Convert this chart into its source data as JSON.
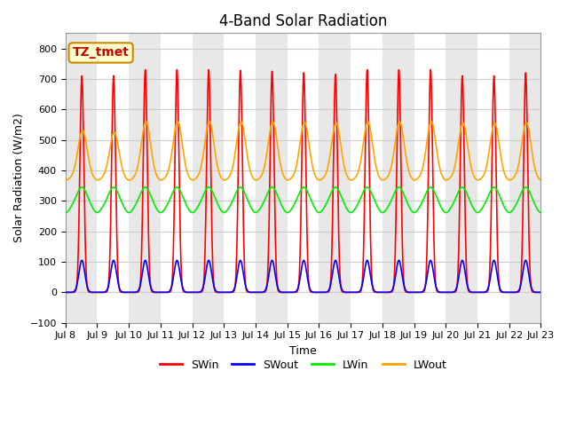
{
  "title": "4-Band Solar Radiation",
  "xlabel": "Time",
  "ylabel": "Solar Radiation (W/m2)",
  "ylim": [
    -100,
    850
  ],
  "annotation_text": "TZ_tmet",
  "annotation_color": "#CC0000",
  "annotation_bg": "#FFFFCC",
  "annotation_border": "#CC8800",
  "grid_color": "#CCCCCC",
  "bg_color": "#FFFFFF",
  "plot_bg": "#FFFFFF",
  "alt_band_color": "#E8E8E8",
  "colors": {
    "SWin": "#FF0000",
    "SWout": "#0000FF",
    "LWin": "#00EE00",
    "LWout": "#FFA500"
  },
  "x_tick_labels": [
    "Jul 8",
    "Jul 9",
    "Jul 10",
    "Jul 11",
    "Jul 12",
    "Jul 13",
    "Jul 14",
    "Jul 15",
    "Jul 16",
    "Jul 17",
    "Jul 18",
    "Jul 19",
    "Jul 20",
    "Jul 21",
    "Jul 22",
    "Jul 23"
  ],
  "n_days": 15,
  "dt": 0.25,
  "title_fontsize": 12,
  "label_fontsize": 9,
  "tick_fontsize": 8,
  "legend_fontsize": 9,
  "linewidth": 1.2
}
